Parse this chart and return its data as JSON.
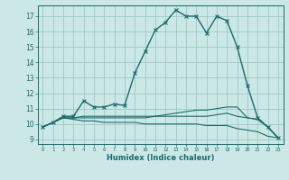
{
  "title": "",
  "xlabel": "Humidex (Indice chaleur)",
  "bg_color": "#cce8e6",
  "grid_color": "#9ac8c6",
  "line_color": "#1a6b6b",
  "xlim": [
    -0.5,
    23.5
  ],
  "ylim": [
    8.7,
    17.7
  ],
  "yticks": [
    9,
    10,
    11,
    12,
    13,
    14,
    15,
    16,
    17
  ],
  "xticks": [
    0,
    1,
    2,
    3,
    4,
    5,
    6,
    7,
    8,
    9,
    10,
    11,
    12,
    13,
    14,
    15,
    16,
    17,
    18,
    19,
    20,
    21,
    22,
    23
  ],
  "series": [
    {
      "x": [
        0,
        1,
        2,
        3,
        4,
        5,
        6,
        7,
        8,
        9,
        10,
        11,
        12,
        13,
        14,
        15,
        16,
        17,
        18,
        19,
        20,
        21,
        22,
        23
      ],
      "y": [
        9.8,
        10.1,
        10.5,
        10.5,
        11.5,
        11.1,
        11.1,
        11.3,
        11.2,
        13.3,
        14.7,
        16.1,
        16.6,
        17.4,
        17.0,
        17.0,
        15.9,
        17.0,
        16.7,
        15.0,
        12.5,
        10.4,
        9.8,
        9.1
      ],
      "marker": "x",
      "lw": 1.0
    },
    {
      "x": [
        0,
        1,
        2,
        3,
        4,
        5,
        6,
        7,
        8,
        9,
        10,
        11,
        12,
        13,
        14,
        15,
        16,
        17,
        18,
        19,
        20,
        21,
        22,
        23
      ],
      "y": [
        9.8,
        10.1,
        10.4,
        10.4,
        10.5,
        10.5,
        10.5,
        10.5,
        10.5,
        10.5,
        10.5,
        10.5,
        10.5,
        10.5,
        10.5,
        10.5,
        10.5,
        10.6,
        10.7,
        10.5,
        10.4,
        10.3,
        9.8,
        9.1
      ],
      "marker": null,
      "lw": 0.8
    },
    {
      "x": [
        0,
        1,
        2,
        3,
        4,
        5,
        6,
        7,
        8,
        9,
        10,
        11,
        12,
        13,
        14,
        15,
        16,
        17,
        18,
        19,
        20,
        21,
        22,
        23
      ],
      "y": [
        9.8,
        10.1,
        10.4,
        10.4,
        10.4,
        10.4,
        10.4,
        10.4,
        10.4,
        10.4,
        10.4,
        10.5,
        10.6,
        10.7,
        10.8,
        10.9,
        10.9,
        11.0,
        11.1,
        11.1,
        10.4,
        10.3,
        9.8,
        9.1
      ],
      "marker": null,
      "lw": 0.8
    },
    {
      "x": [
        0,
        1,
        2,
        3,
        4,
        5,
        6,
        7,
        8,
        9,
        10,
        11,
        12,
        13,
        14,
        15,
        16,
        17,
        18,
        19,
        20,
        21,
        22,
        23
      ],
      "y": [
        9.8,
        10.1,
        10.4,
        10.3,
        10.2,
        10.2,
        10.1,
        10.1,
        10.1,
        10.1,
        10.0,
        10.0,
        10.0,
        10.0,
        10.0,
        10.0,
        9.9,
        9.9,
        9.9,
        9.7,
        9.6,
        9.5,
        9.2,
        9.1
      ],
      "marker": null,
      "lw": 0.8
    }
  ]
}
